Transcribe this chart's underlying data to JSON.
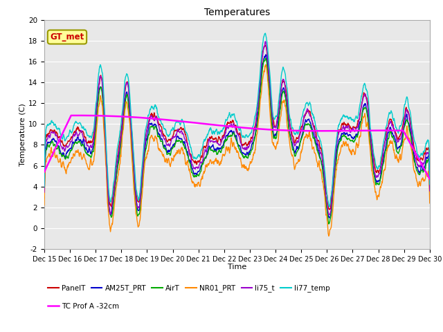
{
  "title": "Temperatures",
  "xlabel": "Time",
  "ylabel": "Temperature (C)",
  "ylim": [
    -2,
    20
  ],
  "yticks": [
    -2,
    0,
    2,
    4,
    6,
    8,
    10,
    12,
    14,
    16,
    18,
    20
  ],
  "xtick_labels": [
    "Dec 15",
    "Dec 16",
    "Dec 17",
    "Dec 18",
    "Dec 19",
    "Dec 20",
    "Dec 21",
    "Dec 22",
    "Dec 23",
    "Dec 24",
    "Dec 25",
    "Dec 26",
    "Dec 27",
    "Dec 28",
    "Dec 29",
    "Dec 30"
  ],
  "background_color": "#e8e8e8",
  "series": {
    "PanelT": {
      "color": "#cc0000",
      "lw": 1.0
    },
    "AM25T_PRT": {
      "color": "#0000cc",
      "lw": 1.0
    },
    "AirT": {
      "color": "#00aa00",
      "lw": 1.0
    },
    "NR01_PRT": {
      "color": "#ff8800",
      "lw": 1.0
    },
    "li75_t": {
      "color": "#9900cc",
      "lw": 1.0
    },
    "li77_temp": {
      "color": "#00cccc",
      "lw": 1.0
    },
    "TC Prof A -32cm": {
      "color": "#ff00ff",
      "lw": 1.8
    }
  },
  "legend_row1": [
    "PanelT",
    "AM25T_PRT",
    "AirT",
    "NR01_PRT",
    "li75_t",
    "li77_temp"
  ],
  "legend_row2": [
    "TC Prof A -32cm"
  ],
  "gt_met_label": "GT_met",
  "gt_met_color": "#cc0000",
  "gt_met_bg": "#ffff99",
  "gt_met_border": "#999900"
}
